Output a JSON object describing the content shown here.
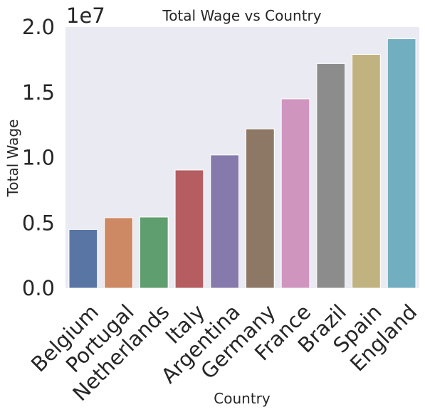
{
  "chart_data": {
    "type": "bar",
    "title": "Total Wage vs Country",
    "xlabel": "Country",
    "ylabel": "Total Wage",
    "y_offset_label": "1e7",
    "y_scale": 10000000,
    "ylim": [
      0,
      20000000
    ],
    "yticks": [
      {
        "value": 0,
        "label": "0.0"
      },
      {
        "value": 5000000,
        "label": "0.5"
      },
      {
        "value": 10000000,
        "label": "1.0"
      },
      {
        "value": 15000000,
        "label": "1.5"
      },
      {
        "value": 20000000,
        "label": "2.0"
      }
    ],
    "categories": [
      "Belgium",
      "Portugal",
      "Netherlands",
      "Italy",
      "Argentina",
      "Germany",
      "France",
      "Brazil",
      "Spain",
      "England"
    ],
    "values": [
      4500000,
      5400000,
      5450000,
      9050000,
      10200000,
      12200000,
      14500000,
      17200000,
      17900000,
      19100000
    ],
    "colors": [
      "#5875a4",
      "#cc8963",
      "#5f9e6e",
      "#b55d60",
      "#857aab",
      "#8d7866",
      "#d095bf",
      "#8c8c8c",
      "#c1b37f",
      "#71aec0"
    ],
    "background_color": "#eaeaf2",
    "grid": false,
    "legend": "none"
  }
}
